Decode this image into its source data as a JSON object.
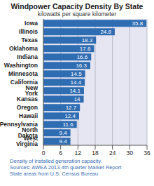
{
  "chart_data": {
    "type": "bar",
    "orientation": "horizontal",
    "title": "Windpower Capacity Density By State",
    "subtitle": "kilowatts per square kilometer",
    "categories": [
      "Iowa",
      "Illinois",
      "Texas",
      "Oklahoma",
      "Indiana",
      "Washington",
      "Minnesota",
      "California",
      "New York",
      "Kansas",
      "Oregon",
      "Hawaii",
      "Pennsylvania",
      "North Dakota",
      "West Virginia"
    ],
    "values": [
      35.8,
      24.8,
      18.3,
      17.6,
      16.6,
      16.3,
      14.5,
      14.4,
      14.1,
      14.0,
      12.7,
      12.4,
      11.6,
      9.4,
      9.4
    ],
    "color": "#2f6db3",
    "xlim": [
      0,
      36
    ],
    "xticks": [
      0,
      6,
      12,
      18,
      24,
      30,
      36
    ],
    "grid": true,
    "data_labels": true,
    "annotations": [
      "Density of installed generation capacity.",
      "Sources: AWEA 2013 4th quarter Market Report",
      "State areas from U.S. Census Bureau"
    ]
  }
}
